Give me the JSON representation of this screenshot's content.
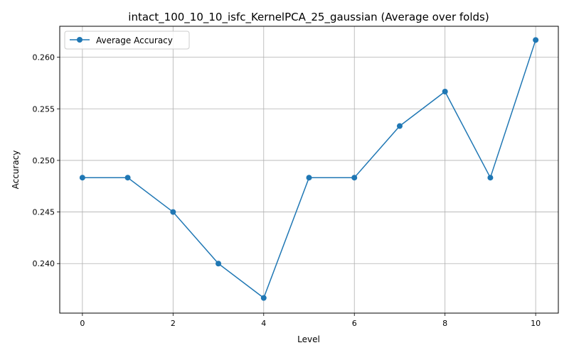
{
  "chart_data": {
    "type": "line",
    "title": "intact_100_10_10_isfc_KernelPCA_25_gaussian (Average over folds)",
    "xlabel": "Level",
    "ylabel": "Accuracy",
    "xlim": [
      -0.5,
      10.5
    ],
    "ylim": [
      0.2352,
      0.263
    ],
    "xticks": [
      0,
      2,
      4,
      6,
      8,
      10
    ],
    "yticks": [
      0.24,
      0.245,
      0.25,
      0.255,
      0.26
    ],
    "ytick_labels": [
      "0.240",
      "0.245",
      "0.250",
      "0.255",
      "0.260"
    ],
    "grid": true,
    "legend_position": "top-left",
    "series": [
      {
        "name": "Average Accuracy",
        "color": "#1f77b4",
        "marker": "circle",
        "x": [
          0,
          1,
          2,
          3,
          4,
          5,
          6,
          7,
          8,
          9,
          10
        ],
        "y": [
          0.24833,
          0.24833,
          0.245,
          0.24,
          0.23667,
          0.24833,
          0.24833,
          0.25333,
          0.25667,
          0.24833,
          0.26167
        ]
      }
    ]
  }
}
